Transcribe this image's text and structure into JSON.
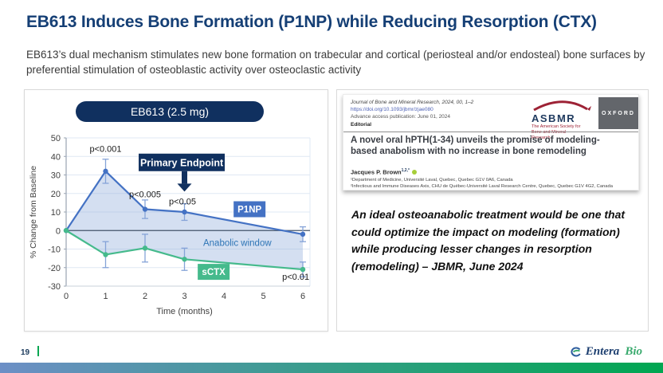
{
  "slide": {
    "title": "EB613 Induces Bone Formation (P1NP) while Reducing Resorption (CTX)",
    "subtitle": "EB613’s dual mechanism stimulates new bone formation on trabecular and cortical (periosteal and/or endosteal) bone surfaces by preferential stimulation of osteoblastic activity over osteoclastic activity"
  },
  "colors": {
    "navy": "#10305f",
    "title_blue": "#153f75",
    "chart_blue": "#4472c4",
    "chart_green": "#45ba8c",
    "fill": "rgba(141,170,219,0.38)",
    "error_bar": "#85a3d8",
    "anabolic_text": "#2e75b6",
    "accent_green": "#00a651",
    "footer_blue": "#6d8fc6"
  },
  "chart_data": {
    "type": "line",
    "title": "EB613 (2.5 mg)",
    "xlabel": "Time (months)",
    "ylabel": "% Change from Baseline",
    "xlim": [
      0,
      6
    ],
    "ylim": [
      -30,
      50
    ],
    "xticks": [
      0,
      1,
      2,
      3,
      4,
      5,
      6
    ],
    "yticks": [
      -30,
      -20,
      -10,
      0,
      10,
      20,
      30,
      40,
      50
    ],
    "grid": "horizontal",
    "legend_position": "inline-boxes",
    "series": [
      {
        "name": "P1NP",
        "color": "#4472c4",
        "x": [
          0,
          1,
          2,
          3,
          6
        ],
        "y": [
          0,
          32,
          11.5,
          10,
          -2
        ],
        "err": [
          0,
          6.5,
          5,
          4.5,
          4
        ]
      },
      {
        "name": "sCTX",
        "color": "#45ba8c",
        "x": [
          0,
          1,
          2,
          3,
          6
        ],
        "y": [
          0,
          -13,
          -9.5,
          -15.5,
          -21
        ],
        "err": [
          0,
          7,
          7.5,
          6,
          4
        ]
      }
    ],
    "fill_between_series": true,
    "fill_label": {
      "text": "Anabolic window",
      "x": 4.34,
      "y": -8.2
    },
    "annotations": [
      {
        "text": "p<0.001",
        "x": 1,
        "y": 42.5
      },
      {
        "text": "p<0.005",
        "x": 2,
        "y": 18
      },
      {
        "text": "p<0.05",
        "x": 2.95,
        "y": 14
      },
      {
        "text": "p<0.01",
        "x": 5.82,
        "y": -26.5
      }
    ],
    "series_labels": [
      {
        "text": "P1NP",
        "x": 4.65,
        "y": 11.5,
        "bg": "#4472c4"
      },
      {
        "text": "sCTX",
        "x": 3.74,
        "y": -22.3,
        "bg": "#45ba8c"
      }
    ],
    "callout": {
      "text": "Primary Endpoint",
      "x": 2.93,
      "arrow_x": 3,
      "box_top_value": 41.5,
      "tip_value": 21
    }
  },
  "journal": {
    "meta_journal": "Journal of Bone and Mineral Research, 2024, 00, 1–2",
    "meta_doi": "https://doi.org/10.1093/jbmr/zjae080",
    "meta_access": "Advance access publication: June 01, 2024",
    "meta_type": "Editorial",
    "asbmr_name": "ASBMR",
    "asbmr_tagline": "The American Society for Bone and Mineral Research",
    "oxford_label": "OXFORD",
    "article_title": "A novel oral hPTH(1-34) unveils the promise of modeling-based anabolism with no increase in bone remodeling",
    "author": "Jacques P. Brown",
    "author_sup": "1,2,*",
    "affiliation_1": "¹Department of Medicine, Université Laval, Quebec, Quebec G1V 0A6, Canada",
    "affiliation_2": "²Infectious and Immune Diseases Axis, CHU de Québec-Université Laval Research Centre, Quebec, Quebec G1V 4G2, Canada"
  },
  "quote": "An ideal osteoanabolic treatment would be one that could optimize the impact on modeling (formation) while producing lesser changes in resorption (remodeling) – JBMR, June 2024",
  "footer": {
    "page_number": "19",
    "brand_entera": "Entera",
    "brand_bio": "Bio"
  }
}
